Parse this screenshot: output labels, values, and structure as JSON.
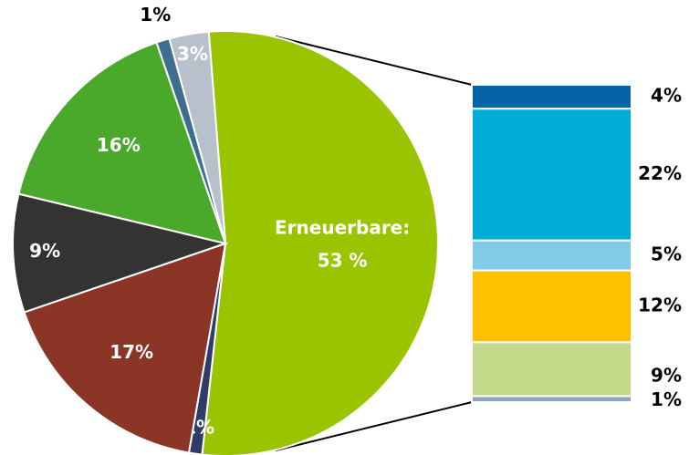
{
  "chart_data": [
    {
      "type": "pie",
      "categories": [
        "Erneuerbare:",
        null,
        null,
        null,
        null,
        null,
        null
      ],
      "values": [
        53,
        1,
        17,
        9,
        16,
        1,
        3
      ],
      "value_labels": [
        "53 %",
        "1%",
        "17%",
        "9%",
        "16%",
        "1%",
        "3%"
      ],
      "colors": [
        "#9bc400",
        "#2f3d66",
        "#8a3525",
        "#333333",
        "#4aa92b",
        "#3d6d8f",
        "#b8c1cb"
      ]
    },
    {
      "type": "stacked-bar",
      "values": [
        4,
        22,
        5,
        12,
        9,
        1
      ],
      "value_labels": [
        "4%",
        "22%",
        "5%",
        "12%",
        "9%",
        "1%"
      ],
      "colors": [
        "#0563a8",
        "#00acd6",
        "#80cbe7",
        "#ffc000",
        "#c4d889",
        "#8fa7c0"
      ]
    }
  ]
}
